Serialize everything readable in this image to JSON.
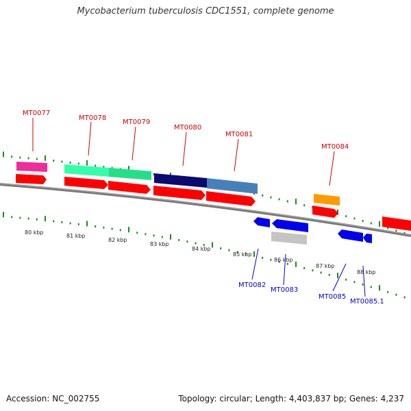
{
  "header": {
    "title": "Mycobacterium tuberculosis CDC1551, complete genome"
  },
  "footer": {
    "accession": "Accession: NC_002755",
    "summary": "Topology: circular; Length: 4,403,837 bp; Genes: 4,237"
  },
  "colors": {
    "backbone": "#777777",
    "tick": "#1a8a1a",
    "gene_forward": "#ff0000",
    "gene_reverse": "#0000ee",
    "label_top": "#cc0000",
    "label_bottom": "#0000cc"
  },
  "scale": {
    "labels": [
      "80 kbp",
      "81 kbp",
      "82 kbp",
      "83 kbp",
      "84 kbp",
      "85 kbp",
      "86 kbp",
      "87 kbp",
      "88 kbp"
    ]
  },
  "genes_top": [
    {
      "name": "MT0077"
    },
    {
      "name": "MT0078"
    },
    {
      "name": "MT0079"
    },
    {
      "name": "MT0080"
    },
    {
      "name": "MT0081"
    },
    {
      "name": "MT0084"
    }
  ],
  "genes_bottom": [
    {
      "name": "MT0082"
    },
    {
      "name": "MT0083"
    },
    {
      "name": "MT0085"
    },
    {
      "name": "MT0085.1"
    }
  ]
}
